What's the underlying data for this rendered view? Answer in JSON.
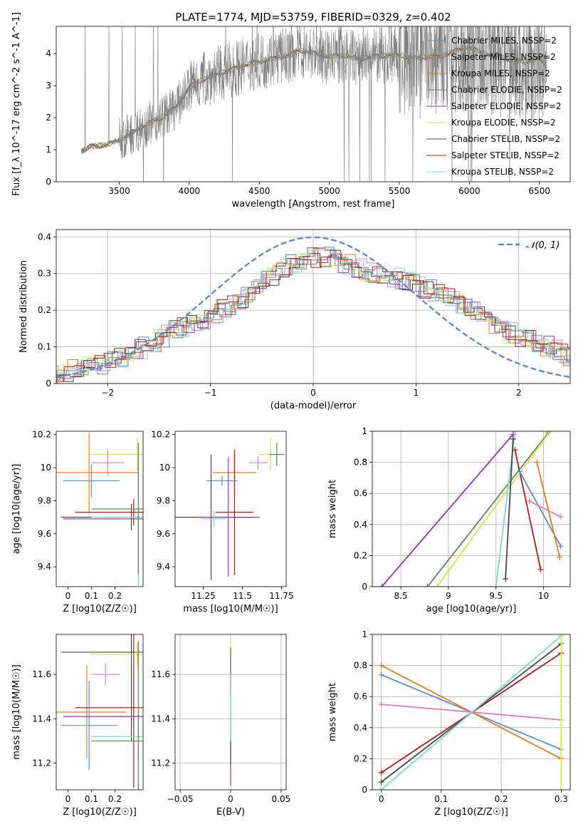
{
  "figure": {
    "title": "PLATE=1774, MJD=53759, FIBERID=0329, z=0.402"
  },
  "colors": {
    "Chabrier MILES": "#5b8ad8",
    "Salpeter MILES": "#e87b1c",
    "Kroupa MILES": "#d4842c",
    "Chabrier ELODIE": "#5a8a5a",
    "Salpeter ELODIE": "#9a2fb8",
    "Kroupa ELODIE": "#d6e845",
    "Chabrier STELIB": "#474747",
    "Salpeter STELIB": "#b51a1a",
    "Kroupa STELIB": "#7fd6d8",
    "pink": "#e47bb5",
    "data": "#808080",
    "normal": "#5b8ad8"
  },
  "chart_data": [
    {
      "id": "spectrum",
      "type": "line",
      "xlabel": "wavelength [Angstrom, rest frame]",
      "ylabel": "Flux [f_λ 10^-17 erg cm^-2 s^-1 A^-1]",
      "xlim": [
        3050,
        6720
      ],
      "ylim": [
        0,
        4.85
      ],
      "xticks": [
        3500,
        4000,
        4500,
        5000,
        5500,
        6000,
        6500
      ],
      "yticks": [
        0,
        1,
        2,
        3,
        4
      ],
      "grid": false,
      "legend_position": "right",
      "legend": [
        "Chabrier MILES, N_SSP=2",
        "Salpeter MILES, N_SSP=2",
        "Kroupa MILES, N_SSP=2",
        "Chabrier ELODIE, N_SSP=2",
        "Salpeter ELODIE, N_SSP=2",
        "Kroupa ELODIE, N_SSP=2",
        "Chabrier STELIB, N_SSP=2",
        "Salpeter STELIB, N_SSP=2",
        "Kroupa STELIB, N_SSP=2"
      ],
      "continuum": {
        "x": [
          3230,
          3300,
          3400,
          3500,
          3600,
          3700,
          3800,
          3900,
          4000,
          4100,
          4200,
          4300,
          4400,
          4500,
          4600,
          4700,
          4800,
          4900,
          5000,
          5100,
          5200,
          5300,
          5400,
          5500,
          5600,
          5700,
          5800,
          5900,
          6000,
          6100,
          6200,
          6300,
          6400,
          6500,
          6550
        ],
        "y": [
          0.95,
          1.1,
          1.15,
          1.3,
          1.55,
          1.8,
          2.0,
          2.3,
          2.95,
          3.2,
          3.35,
          3.5,
          3.65,
          3.75,
          3.85,
          3.95,
          4.1,
          4.0,
          3.9,
          3.95,
          3.85,
          3.9,
          3.95,
          3.95,
          3.85,
          3.9,
          3.9,
          4.1,
          4.2,
          4.0,
          3.95,
          3.8,
          3.75,
          3.85,
          3.6
        ]
      }
    },
    {
      "id": "residuals",
      "type": "line",
      "xlabel": "(data-model)/error",
      "ylabel": "Normed distribution",
      "xlim": [
        -2.5,
        2.5
      ],
      "ylim": [
        0,
        0.42
      ],
      "xticks": [
        -2,
        -1,
        0,
        1,
        2
      ],
      "yticks": [
        0.0,
        0.1,
        0.2,
        0.3,
        0.4
      ],
      "grid": true,
      "legend_position": "top-right",
      "legend": [
        "N(0,1)"
      ],
      "histogram_envelope": {
        "x": [
          -2.5,
          -2.3,
          -2.1,
          -1.9,
          -1.7,
          -1.5,
          -1.3,
          -1.1,
          -0.9,
          -0.7,
          -0.5,
          -0.3,
          -0.1,
          0.1,
          0.3,
          0.5,
          0.7,
          0.9,
          1.1,
          1.3,
          1.5,
          1.7,
          1.9,
          2.1,
          2.3,
          2.5
        ],
        "y": [
          0.02,
          0.04,
          0.05,
          0.07,
          0.09,
          0.12,
          0.15,
          0.17,
          0.2,
          0.23,
          0.27,
          0.31,
          0.34,
          0.35,
          0.33,
          0.31,
          0.3,
          0.28,
          0.26,
          0.24,
          0.21,
          0.17,
          0.14,
          0.12,
          0.1,
          0.07
        ]
      }
    },
    {
      "id": "age_vs_Z",
      "type": "scatter",
      "xlabel": "Z [log10(Z/Z☉)]",
      "ylabel": "age [log10(age/yr)]",
      "xlim": [
        -0.05,
        0.32
      ],
      "ylim": [
        9.28,
        10.22
      ],
      "xticks": [
        0.0,
        0.1,
        0.2
      ],
      "yticks": [
        9.4,
        9.6,
        9.8,
        10.0,
        10.2
      ],
      "points": [
        {
          "x": 0.1,
          "y": 9.92,
          "xerr": 0.12,
          "yerr": 0.1,
          "series": "Chabrier MILES"
        },
        {
          "x": 0.09,
          "y": 9.97,
          "xerr": 0.21,
          "yerr": 0.24,
          "series": "Salpeter MILES"
        },
        {
          "x": 0.17,
          "y": 10.02,
          "xerr": 0.07,
          "yerr": 0.08,
          "series": "pink"
        },
        {
          "x": 0.28,
          "y": 9.73,
          "xerr": 0.22,
          "yerr": 0.08,
          "series": "Salpeter STELIB"
        },
        {
          "x": 0.27,
          "y": 9.7,
          "xerr": 0.25,
          "yerr": 0.08,
          "series": "Chabrier STELIB"
        },
        {
          "x": 0.29,
          "y": 10.08,
          "xerr": 0.17,
          "yerr": 0.1,
          "series": "Kroupa ELODIE"
        },
        {
          "x": 0.3,
          "y": 9.7,
          "xerr": 0.32,
          "yerr": 0.36,
          "series": "Salpeter ELODIE"
        },
        {
          "x": 0.3,
          "y": 9.69,
          "xerr": 0.2,
          "yerr": 0.06,
          "series": "Kroupa STELIB"
        }
      ]
    },
    {
      "id": "age_vs_mass",
      "type": "scatter",
      "xlabel": "mass [log10(M/M☉)]",
      "ylabel": "",
      "xlim": [
        11.07,
        11.78
      ],
      "ylim": [
        9.28,
        10.22
      ],
      "xticks": [
        11.25,
        11.5,
        11.75
      ],
      "yticks": [
        9.4,
        9.6,
        9.8,
        10.0,
        10.2
      ],
      "points": [
        {
          "x": 11.37,
          "y": 9.92,
          "series": "Chabrier MILES"
        },
        {
          "x": 11.45,
          "y": 9.97,
          "series": "Salpeter MILES"
        },
        {
          "x": 11.6,
          "y": 10.02,
          "series": "pink"
        },
        {
          "x": 11.45,
          "y": 9.73,
          "series": "Salpeter STELIB"
        },
        {
          "x": 11.3,
          "y": 9.7,
          "series": "Chabrier STELIB"
        },
        {
          "x": 11.7,
          "y": 10.08,
          "series": "Kroupa ELODIE"
        },
        {
          "x": 11.41,
          "y": 9.7,
          "series": "Salpeter ELODIE"
        },
        {
          "x": 11.32,
          "y": 9.69,
          "series": "Kroupa STELIB"
        }
      ]
    },
    {
      "id": "weight_vs_age",
      "type": "line",
      "xlabel": "age [log10(age/yr)]",
      "ylabel": "mass weight",
      "xlim": [
        8.2,
        10.28
      ],
      "ylim": [
        0,
        1.0
      ],
      "xticks": [
        8.5,
        9.0,
        9.5,
        10.0
      ],
      "yticks": [
        0.0,
        0.2,
        0.4,
        0.6,
        0.8,
        1.0
      ],
      "grid": true
    },
    {
      "id": "mass_vs_Z",
      "type": "scatter",
      "xlabel": "Z [log10(Z/Z☉)]",
      "ylabel": "mass [log10(M/M☉)]",
      "xlim": [
        -0.05,
        0.32
      ],
      "ylim": [
        11.08,
        11.78
      ],
      "xticks": [
        0.0,
        0.1,
        0.2
      ],
      "yticks": [
        11.2,
        11.4,
        11.6
      ]
    },
    {
      "id": "mass_vs_EBV",
      "type": "scatter",
      "xlabel": "E(B-V)",
      "ylabel": "",
      "xlim": [
        -0.055,
        0.055
      ],
      "ylim": [
        11.08,
        11.78
      ],
      "xticks": [
        -0.05,
        0.0,
        0.05
      ],
      "yticks": [
        11.2,
        11.4,
        11.6
      ],
      "grid": true
    },
    {
      "id": "weight_vs_Z",
      "type": "line",
      "xlabel": "Z [log10(Z/Z☉)]",
      "ylabel": "mass weight",
      "xlim": [
        -0.015,
        0.315
      ],
      "ylim": [
        0,
        1.0
      ],
      "xticks": [
        0.0,
        0.1,
        0.2,
        0.3
      ],
      "yticks": [
        0.0,
        0.2,
        0.4,
        0.6,
        0.8,
        1.0
      ],
      "grid": true
    }
  ]
}
